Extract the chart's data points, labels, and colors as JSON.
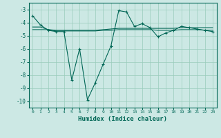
{
  "xlabel": "Humidex (Indice chaleur)",
  "background_color": "#cce8e4",
  "grid_color": "#99ccbb",
  "line_color": "#006655",
  "xlim": [
    -0.5,
    23.5
  ],
  "ylim": [
    -10.5,
    -2.5
  ],
  "yticks": [
    -10,
    -9,
    -8,
    -7,
    -6,
    -5,
    -4,
    -3
  ],
  "xticks": [
    0,
    1,
    2,
    3,
    4,
    5,
    6,
    7,
    8,
    9,
    10,
    11,
    12,
    13,
    14,
    15,
    16,
    17,
    18,
    19,
    20,
    21,
    22,
    23
  ],
  "series1": [
    [
      0,
      -3.5
    ],
    [
      1,
      -4.2
    ],
    [
      2,
      -4.6
    ],
    [
      3,
      -4.7
    ],
    [
      4,
      -4.7
    ],
    [
      5,
      -8.4
    ],
    [
      6,
      -6.0
    ],
    [
      7,
      -9.9
    ],
    [
      8,
      -8.6
    ],
    [
      9,
      -7.2
    ],
    [
      10,
      -5.8
    ],
    [
      11,
      -3.1
    ],
    [
      12,
      -3.2
    ],
    [
      13,
      -4.3
    ],
    [
      14,
      -4.1
    ],
    [
      15,
      -4.4
    ],
    [
      16,
      -5.1
    ],
    [
      17,
      -4.8
    ],
    [
      18,
      -4.6
    ],
    [
      19,
      -4.3
    ],
    [
      20,
      -4.4
    ],
    [
      21,
      -4.5
    ],
    [
      22,
      -4.6
    ],
    [
      23,
      -4.7
    ]
  ],
  "flat1": [
    [
      0,
      -4.35
    ],
    [
      1,
      -4.35
    ],
    [
      2,
      -4.55
    ],
    [
      3,
      -4.6
    ],
    [
      4,
      -4.6
    ],
    [
      5,
      -4.6
    ],
    [
      6,
      -4.6
    ],
    [
      7,
      -4.6
    ],
    [
      8,
      -4.6
    ],
    [
      9,
      -4.55
    ],
    [
      10,
      -4.5
    ],
    [
      11,
      -4.45
    ],
    [
      12,
      -4.45
    ],
    [
      13,
      -4.45
    ],
    [
      14,
      -4.45
    ],
    [
      15,
      -4.45
    ],
    [
      16,
      -4.45
    ],
    [
      17,
      -4.45
    ],
    [
      18,
      -4.45
    ],
    [
      19,
      -4.4
    ],
    [
      20,
      -4.4
    ],
    [
      21,
      -4.4
    ],
    [
      22,
      -4.4
    ],
    [
      23,
      -4.4
    ]
  ],
  "flat2": [
    [
      0,
      -4.55
    ],
    [
      2,
      -4.55
    ],
    [
      3,
      -4.65
    ],
    [
      4,
      -4.65
    ],
    [
      5,
      -4.65
    ],
    [
      6,
      -4.65
    ],
    [
      7,
      -4.65
    ],
    [
      8,
      -4.65
    ],
    [
      9,
      -4.6
    ],
    [
      10,
      -4.6
    ],
    [
      11,
      -4.55
    ],
    [
      12,
      -4.55
    ],
    [
      13,
      -4.55
    ],
    [
      14,
      -4.55
    ],
    [
      15,
      -4.55
    ],
    [
      16,
      -4.6
    ],
    [
      17,
      -4.6
    ],
    [
      18,
      -4.6
    ],
    [
      19,
      -4.55
    ],
    [
      20,
      -4.55
    ],
    [
      21,
      -4.55
    ],
    [
      22,
      -4.6
    ],
    [
      23,
      -4.6
    ]
  ]
}
